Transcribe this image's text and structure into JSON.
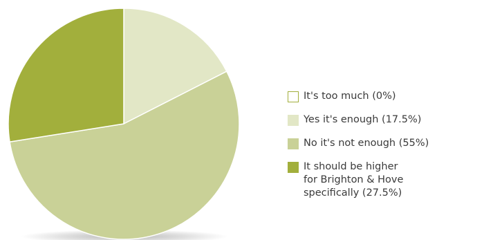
{
  "chart_data": {
    "type": "pie",
    "title": "",
    "slices": [
      {
        "label": "It's too much (0%)",
        "value": 0,
        "color": "#ffffff",
        "border": "#a2af3c"
      },
      {
        "label": "Yes it's enough (17.5%)",
        "value": 17.5,
        "color": "#e2e7c6",
        "border": "#e2e7c6"
      },
      {
        "label": "No it's not enough (55%)",
        "value": 55,
        "color": "#c9d197",
        "border": "#c9d197"
      },
      {
        "label": "It should be higher\nfor Brighton & Hove\nspecifically (27.5%)",
        "value": 27.5,
        "color": "#a2af3c",
        "border": "#a2af3c"
      }
    ],
    "legend_position": "right",
    "start_angle_deg": 0,
    "direction": "clockwise"
  }
}
